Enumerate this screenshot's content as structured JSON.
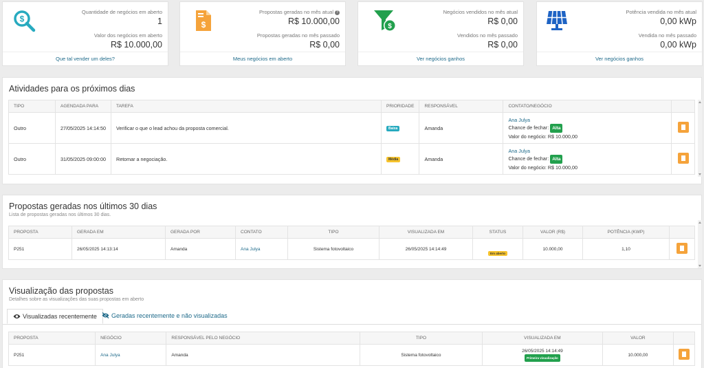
{
  "stats": [
    {
      "icon": "search-dollar-icon",
      "l1": "Quantidade de negócios em aberto",
      "v1": "1",
      "l2": "Valor dos negócios em aberto",
      "v2": "R$ 10.000,00",
      "link": "Que tal vender um deles?",
      "color": "#27aabf"
    },
    {
      "icon": "invoice-dollar-icon",
      "l1": "Propostas geradas no mês atual",
      "v1": "R$ 10.000,00",
      "l2": "Propostas geradas no mês passado",
      "v2": "R$ 0,00",
      "link": "Meus negócios em aberto",
      "color": "#f5a33b"
    },
    {
      "icon": "funnel-dollar-icon",
      "l1": "Negócios vendidos no mês atual",
      "v1": "R$ 0,00",
      "l2": "Vendidos no mês passado",
      "v2": "R$ 0,00",
      "link": "Ver negócios ganhos",
      "color": "#22a04d"
    },
    {
      "icon": "solar-panel-icon",
      "l1": "Potência vendida no mês atual",
      "v1": "0,00 kWp",
      "l2": "Vendida no mês passado",
      "v2": "0,00 kWp",
      "link": "Ver negócios ganhos",
      "color": "#1e63c4"
    }
  ],
  "help_glyph": "?",
  "activities": {
    "title": "Atividades para os próximos dias",
    "headers": [
      "TIPO",
      "AGENDADA PARA",
      "TAREFA",
      "PRIORIDADE",
      "RESPONSÁVEL",
      "CONTATO/NEGÓCIO",
      ""
    ],
    "rows": [
      {
        "tipo": "Outro",
        "agendada": "27/05/2025 14:14:50",
        "tarefa": "Verificar o que o lead achou da proposta comercial.",
        "prioridade": "Baixa",
        "responsavel": "Amanda",
        "contato": "Ana Julya",
        "chance_label": "Chance de fechar:",
        "chance": "Alta",
        "valor": "Valor do negócio: R$ 10.000,00"
      },
      {
        "tipo": "Outro",
        "agendada": "31/05/2025 09:00:00",
        "tarefa": "Retomar a negociação.",
        "prioridade": "Média",
        "responsavel": "Amanda",
        "contato": "Ana Julya",
        "chance_label": "Chance de fechar:",
        "chance": "Alta",
        "valor": "Valor do negócio: R$ 10.000,00"
      }
    ]
  },
  "proposals": {
    "title": "Propostas geradas nos últimos 30 dias",
    "subtitle": "Lista de propostas geradas nos últimos 30 dias.",
    "headers": [
      "PROPOSTA",
      "GERADA EM",
      "GERADA POR",
      "CONTATO",
      "TIPO",
      "VISUALIZADA EM",
      "STATUS",
      "VALOR (R$)",
      "POTÊNCIA (KWP)",
      ""
    ],
    "row": {
      "proposta": "P251",
      "gerada_em": "26/05/2025 14:13:14",
      "gerada_por": "Amanda",
      "contato": "Ana Julya",
      "tipo": "Sistema fotovoltaico",
      "visualizada": "26/05/2025 14:14:49",
      "status": "Em aberto",
      "valor": "10.000,00",
      "potencia": "1,10"
    }
  },
  "views": {
    "title": "Visualização das propostas",
    "subtitle": "Detalhes sobre as visualizações das suas propostas em aberto",
    "tab1": "Visualizadas recentemente",
    "tab2": "Geradas recentemente e não visualizadas",
    "headers": [
      "PROPOSTA",
      "NEGÓCIO",
      "RESPONSÁVEL PELO NEGÓCIO",
      "TIPO",
      "VISUALIZADA EM",
      "VALOR",
      ""
    ],
    "row": {
      "proposta": "P251",
      "negocio": "Ana Julya",
      "responsavel": "Amanda",
      "tipo": "Sistema fotovoltaico",
      "visualizada": "26/05/2025 14:14:49",
      "badge": "Primeira visualização",
      "valor": "10.000,00"
    }
  }
}
